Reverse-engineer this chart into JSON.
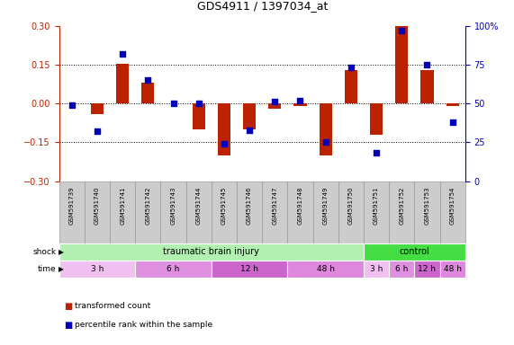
{
  "title": "GDS4911 / 1397034_at",
  "samples": [
    "GSM591739",
    "GSM591740",
    "GSM591741",
    "GSM591742",
    "GSM591743",
    "GSM591744",
    "GSM591745",
    "GSM591746",
    "GSM591747",
    "GSM591748",
    "GSM591749",
    "GSM591750",
    "GSM591751",
    "GSM591752",
    "GSM591753",
    "GSM591754"
  ],
  "red_values": [
    0.0,
    -0.04,
    0.155,
    0.08,
    0.0,
    -0.1,
    -0.2,
    -0.1,
    -0.02,
    -0.01,
    -0.2,
    0.13,
    -0.12,
    0.3,
    0.13,
    -0.01
  ],
  "blue_values_pct": [
    49,
    32,
    82,
    65,
    50,
    50,
    24,
    33,
    51,
    52,
    25,
    73,
    18,
    97,
    75,
    38
  ],
  "shock_groups": [
    {
      "label": "traumatic brain injury",
      "start": 0,
      "end": 11,
      "color": "#b2f0b2"
    },
    {
      "label": "control",
      "start": 12,
      "end": 15,
      "color": "#44dd44"
    }
  ],
  "time_groups": [
    {
      "label": "3 h",
      "start": 0,
      "end": 2,
      "color": "#f0c0f0"
    },
    {
      "label": "6 h",
      "start": 3,
      "end": 5,
      "color": "#e090e0"
    },
    {
      "label": "12 h",
      "start": 6,
      "end": 8,
      "color": "#cc66cc"
    },
    {
      "label": "48 h",
      "start": 9,
      "end": 11,
      "color": "#dd88dd"
    },
    {
      "label": "3 h",
      "start": 12,
      "end": 12,
      "color": "#f0c0f0"
    },
    {
      "label": "6 h",
      "start": 13,
      "end": 13,
      "color": "#e090e0"
    },
    {
      "label": "12 h",
      "start": 14,
      "end": 14,
      "color": "#cc66cc"
    },
    {
      "label": "48 h",
      "start": 15,
      "end": 15,
      "color": "#dd88dd"
    }
  ],
  "ylim_left": [
    -0.3,
    0.3
  ],
  "ylim_right": [
    0,
    100
  ],
  "yticks_left": [
    -0.3,
    -0.15,
    0.0,
    0.15,
    0.3
  ],
  "yticks_right": [
    0,
    25,
    50,
    75,
    100
  ],
  "ytick_labels_right": [
    "0",
    "25",
    "50",
    "75",
    "100%"
  ],
  "red_color": "#bb2200",
  "blue_color": "#0000bb",
  "bar_width": 0.5,
  "dot_size": 18,
  "label_box_color": "#cccccc",
  "label_box_edge": "#999999"
}
